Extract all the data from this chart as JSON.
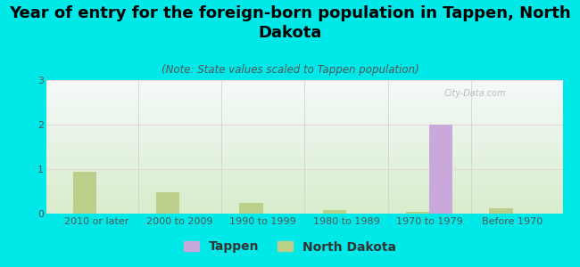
{
  "title": "Year of entry for the foreign-born population in Tappen, North\nDakota",
  "subtitle": "(Note: State values scaled to Tappen population)",
  "categories": [
    "2010 or later",
    "2000 to 2009",
    "1990 to 1999",
    "1980 to 1989",
    "1970 to 1979",
    "Before 1970"
  ],
  "tappen_values": [
    0,
    0,
    0,
    0,
    2,
    0
  ],
  "nd_values": [
    0.95,
    0.48,
    0.25,
    0.08,
    0.05,
    0.13
  ],
  "tappen_color": "#c9a8dc",
  "nd_color": "#bccf8a",
  "background_color": "#00e8e8",
  "plot_bg_grad_bottom": "#d8edcc",
  "plot_bg_grad_top": "#eaf4f4",
  "ylim": [
    0,
    3
  ],
  "yticks": [
    0,
    1,
    2,
    3
  ],
  "bar_width": 0.28,
  "title_fontsize": 13,
  "subtitle_fontsize": 8.5,
  "tick_fontsize": 8,
  "legend_fontsize": 10,
  "watermark": "City-Data.com"
}
